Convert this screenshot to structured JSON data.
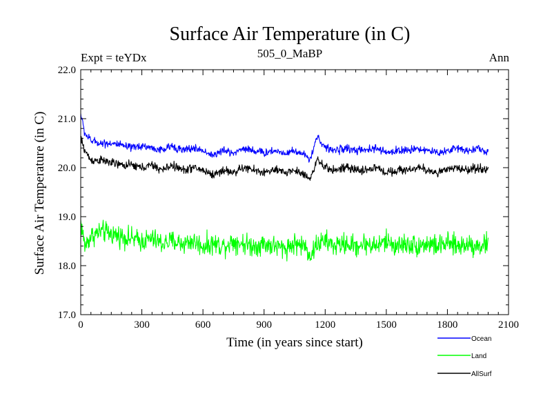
{
  "chart_data": {
    "type": "line",
    "title": "Surface Air Temperature (in C)",
    "subtitle_left": "Expt = teYDx",
    "subtitle_center": "505_0_MaBP",
    "subtitle_right": "Ann",
    "xlabel": "Time (in years since start)",
    "ylabel": "Surface Air Temperature (in C)",
    "xlim": [
      0,
      2100
    ],
    "ylim": [
      17.0,
      22.0
    ],
    "xticks": [
      0,
      300,
      600,
      900,
      1200,
      1500,
      1800,
      2100
    ],
    "xtick_labels": [
      "0",
      "300",
      "600",
      "900",
      "1200",
      "1500",
      "1800",
      "2100"
    ],
    "yticks": [
      17.0,
      18.0,
      19.0,
      20.0,
      21.0,
      22.0
    ],
    "ytick_labels": [
      "17.0",
      "18.0",
      "19.0",
      "20.0",
      "21.0",
      "22.0"
    ],
    "grid": false,
    "legend_position": "bottom-right",
    "series": [
      {
        "name": "Ocean",
        "color": "#0000ff",
        "x": [
          0,
          20,
          50,
          100,
          150,
          200,
          250,
          300,
          350,
          400,
          450,
          500,
          550,
          600,
          650,
          700,
          750,
          800,
          850,
          900,
          950,
          1000,
          1050,
          1100,
          1130,
          1160,
          1200,
          1250,
          1300,
          1350,
          1400,
          1450,
          1500,
          1550,
          1600,
          1650,
          1700,
          1750,
          1800,
          1850,
          1900,
          1950,
          2000
        ],
        "values": [
          21.1,
          20.7,
          20.55,
          20.5,
          20.5,
          20.45,
          20.4,
          20.45,
          20.4,
          20.35,
          20.45,
          20.35,
          20.4,
          20.35,
          20.25,
          20.35,
          20.3,
          20.4,
          20.35,
          20.3,
          20.35,
          20.3,
          20.35,
          20.25,
          20.2,
          20.65,
          20.4,
          20.35,
          20.4,
          20.35,
          20.35,
          20.4,
          20.3,
          20.35,
          20.35,
          20.4,
          20.35,
          20.3,
          20.35,
          20.4,
          20.35,
          20.4,
          20.3
        ]
      },
      {
        "name": "Land",
        "color": "#00ff00",
        "x": [
          0,
          20,
          50,
          100,
          150,
          200,
          250,
          300,
          350,
          400,
          450,
          500,
          550,
          600,
          650,
          700,
          750,
          800,
          850,
          900,
          950,
          1000,
          1050,
          1100,
          1130,
          1160,
          1200,
          1250,
          1300,
          1350,
          1400,
          1450,
          1500,
          1550,
          1600,
          1650,
          1700,
          1750,
          1800,
          1850,
          1900,
          1950,
          2000
        ],
        "values": [
          18.9,
          18.4,
          18.6,
          18.7,
          18.65,
          18.6,
          18.55,
          18.5,
          18.55,
          18.45,
          18.5,
          18.45,
          18.5,
          18.4,
          18.45,
          18.4,
          18.5,
          18.45,
          18.4,
          18.45,
          18.4,
          18.35,
          18.45,
          18.4,
          18.2,
          18.45,
          18.5,
          18.4,
          18.45,
          18.4,
          18.45,
          18.4,
          18.5,
          18.4,
          18.45,
          18.4,
          18.45,
          18.4,
          18.45,
          18.4,
          18.45,
          18.4,
          18.45
        ]
      },
      {
        "name": "AllSurf",
        "color": "#000000",
        "x": [
          0,
          20,
          50,
          100,
          150,
          200,
          250,
          300,
          350,
          400,
          450,
          500,
          550,
          600,
          650,
          700,
          750,
          800,
          850,
          900,
          950,
          1000,
          1050,
          1100,
          1130,
          1160,
          1200,
          1250,
          1300,
          1350,
          1400,
          1450,
          1500,
          1550,
          1600,
          1650,
          1700,
          1750,
          1800,
          1850,
          1900,
          1950,
          2000
        ],
        "values": [
          20.6,
          20.35,
          20.15,
          20.15,
          20.1,
          20.05,
          20.05,
          20.0,
          20.05,
          19.95,
          20.05,
          19.95,
          20.0,
          19.95,
          19.85,
          19.95,
          19.9,
          20.0,
          19.95,
          19.9,
          19.95,
          19.9,
          19.95,
          19.85,
          19.8,
          20.15,
          20.0,
          19.95,
          20.0,
          19.95,
          19.95,
          20.0,
          19.9,
          19.95,
          19.95,
          20.0,
          19.95,
          19.9,
          19.95,
          20.0,
          19.95,
          20.0,
          19.95
        ]
      }
    ]
  }
}
